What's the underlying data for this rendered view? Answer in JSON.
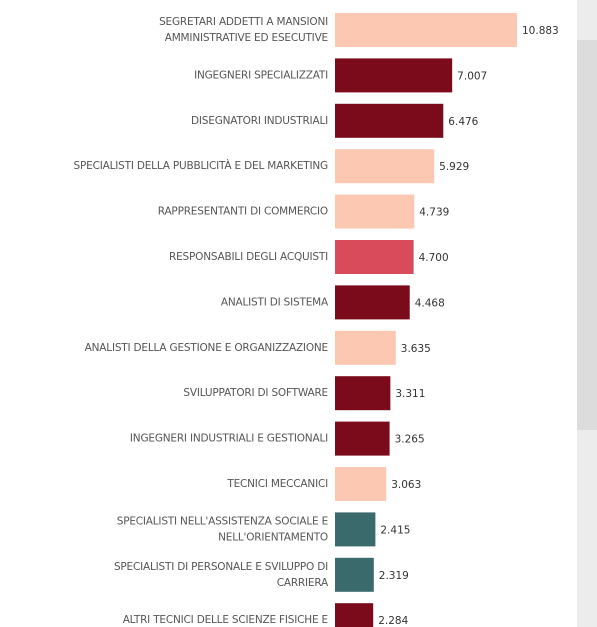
{
  "chart_data": {
    "type": "bar",
    "orientation": "horizontal",
    "categories": [
      [
        "SEGRETARI ADDETTI A MANSIONI",
        "AMMINISTRATIVE ED ESECUTIVE"
      ],
      [
        "INGEGNERI SPECIALIZZATI"
      ],
      [
        "DISEGNATORI INDUSTRIALI"
      ],
      [
        "SPECIALISTI DELLA PUBBLICITÀ E DEL MARKETING"
      ],
      [
        "RAPPRESENTANTI DI COMMERCIO"
      ],
      [
        "RESPONSABILI DEGLI ACQUISTI"
      ],
      [
        "ANALISTI DI SISTEMA"
      ],
      [
        "ANALISTI DELLA GESTIONE E ORGANIZZAZIONE"
      ],
      [
        "SVILUPPATORI DI SOFTWARE"
      ],
      [
        "INGEGNERI INDUSTRIALI E GESTIONALI"
      ],
      [
        "TECNICI MECCANICI"
      ],
      [
        "SPECIALISTI NELL'ASSISTENZA SOCIALE E",
        "NELL'ORIENTAMENTO"
      ],
      [
        "SPECIALISTI DI PERSONALE E SVILUPPO DI",
        "CARRIERA"
      ],
      [
        "ALTRI TECNICI DELLE SCIENZE FISICHE E"
      ]
    ],
    "values": [
      10883,
      7007,
      6476,
      5929,
      4739,
      4700,
      4468,
      3635,
      3311,
      3265,
      3063,
      2415,
      2319,
      2284
    ],
    "value_labels": [
      "10.883",
      "7.007",
      "6.476",
      "5.929",
      "4.739",
      "4.700",
      "4.468",
      "3.635",
      "3.311",
      "3.265",
      "3.063",
      "2.415",
      "2.319",
      "2.284"
    ],
    "colors": [
      "#fcc8b2",
      "#7b0a1b",
      "#7b0a1b",
      "#fcc8b2",
      "#fcc8b2",
      "#d94b5b",
      "#7b0a1b",
      "#fcc8b2",
      "#7b0a1b",
      "#7b0a1b",
      "#fcc8b2",
      "#3b6a6d",
      "#3b6a6d",
      "#7b0a1b"
    ]
  }
}
